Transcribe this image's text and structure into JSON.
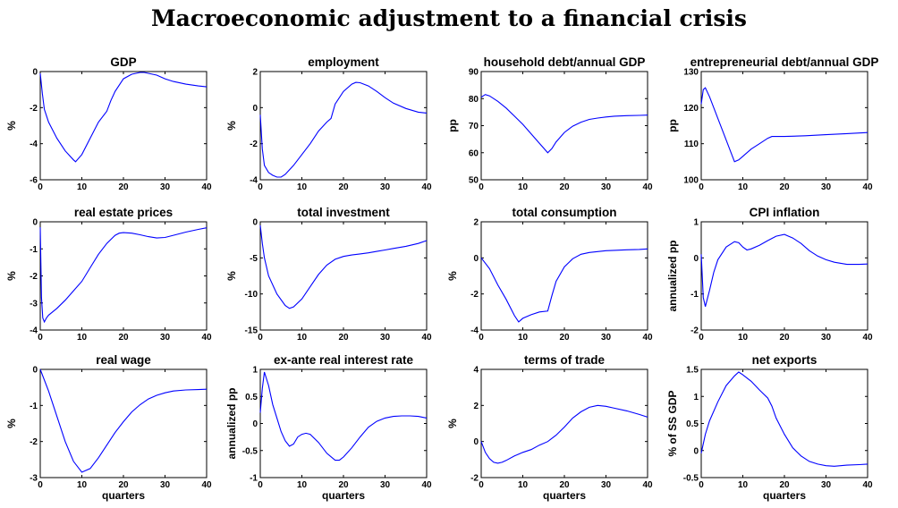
{
  "figure_title": "Macroeconomic adjustment to a financial crisis",
  "line_color": "#0000ff",
  "chart_data": [
    {
      "type": "line",
      "title": "GDP",
      "xlabel": "",
      "ylabel": "%",
      "xlim": [
        0,
        40
      ],
      "ylim": [
        -6,
        0
      ],
      "xticks": [
        0,
        10,
        20,
        30,
        40
      ],
      "yticks": [
        -6,
        -4,
        -2,
        0
      ],
      "x": [
        0,
        0.5,
        1,
        2,
        4,
        6,
        8,
        8.5,
        10,
        12,
        14,
        16,
        17,
        18,
        20,
        22,
        24,
        25,
        26,
        28,
        30,
        32,
        35,
        38,
        40
      ],
      "y": [
        -0.1,
        -1.2,
        -2.1,
        -2.8,
        -3.7,
        -4.4,
        -4.9,
        -5.0,
        -4.6,
        -3.7,
        -2.8,
        -2.2,
        -1.6,
        -1.1,
        -0.4,
        -0.15,
        -0.05,
        -0.05,
        -0.1,
        -0.2,
        -0.4,
        -0.55,
        -0.7,
        -0.8,
        -0.85
      ]
    },
    {
      "type": "line",
      "title": "employment",
      "xlabel": "",
      "ylabel": "%",
      "xlim": [
        0,
        40
      ],
      "ylim": [
        -4,
        2
      ],
      "xticks": [
        0,
        10,
        20,
        30,
        40
      ],
      "yticks": [
        -4,
        -2,
        0,
        2
      ],
      "x": [
        0,
        0.5,
        1,
        2,
        3,
        4,
        5,
        6,
        8,
        10,
        12,
        14,
        16,
        17,
        18,
        20,
        22,
        23,
        24,
        26,
        28,
        30,
        32,
        35,
        38,
        40
      ],
      "y": [
        -0.4,
        -2.3,
        -3.2,
        -3.6,
        -3.75,
        -3.85,
        -3.85,
        -3.7,
        -3.2,
        -2.6,
        -2.0,
        -1.3,
        -0.8,
        -0.6,
        0.2,
        0.9,
        1.3,
        1.4,
        1.38,
        1.2,
        0.9,
        0.55,
        0.25,
        -0.05,
        -0.25,
        -0.3
      ]
    },
    {
      "type": "line",
      "title": "household debt/annual GDP",
      "xlabel": "",
      "ylabel": "pp",
      "xlim": [
        0,
        40
      ],
      "ylim": [
        50,
        90
      ],
      "xticks": [
        0,
        10,
        20,
        30,
        40
      ],
      "yticks": [
        50,
        60,
        70,
        80,
        90
      ],
      "x": [
        0,
        1,
        2,
        4,
        6,
        8,
        10,
        12,
        14,
        16,
        17,
        18,
        20,
        22,
        24,
        26,
        28,
        30,
        32,
        35,
        38,
        40
      ],
      "y": [
        80.5,
        81.5,
        81,
        79,
        76.5,
        73.5,
        70.5,
        67,
        63.5,
        60,
        61.5,
        64,
        67.5,
        69.8,
        71.3,
        72.3,
        72.8,
        73.2,
        73.5,
        73.7,
        73.8,
        73.9
      ]
    },
    {
      "type": "line",
      "title": "entrepreneurial debt/annual GDP",
      "xlabel": "",
      "ylabel": "pp",
      "xlim": [
        0,
        40
      ],
      "ylim": [
        100,
        130
      ],
      "xticks": [
        0,
        10,
        20,
        30,
        40
      ],
      "yticks": [
        100,
        110,
        120,
        130
      ],
      "x": [
        0,
        0.5,
        1,
        2,
        4,
        6,
        8,
        9,
        10,
        12,
        14,
        16,
        17,
        18,
        20,
        25,
        30,
        35,
        40
      ],
      "y": [
        121,
        125,
        125.5,
        123,
        117,
        111,
        105,
        105.5,
        106.5,
        108.5,
        110,
        111.5,
        112,
        112,
        112,
        112.2,
        112.5,
        112.8,
        113.1
      ]
    },
    {
      "type": "line",
      "title": "real estate prices",
      "xlabel": "",
      "ylabel": "%",
      "xlim": [
        0,
        40
      ],
      "ylim": [
        -4,
        0
      ],
      "xticks": [
        0,
        10,
        20,
        30,
        40
      ],
      "yticks": [
        -4,
        -3,
        -2,
        -1,
        0
      ],
      "x": [
        0,
        0.3,
        0.6,
        1,
        1.5,
        2,
        4,
        6,
        8,
        10,
        12,
        14,
        16,
        18,
        19,
        20,
        22,
        24,
        26,
        28,
        30,
        32,
        35,
        38,
        40
      ],
      "y": [
        -0.2,
        -2.8,
        -3.55,
        -3.7,
        -3.55,
        -3.45,
        -3.2,
        -2.9,
        -2.55,
        -2.2,
        -1.7,
        -1.2,
        -0.8,
        -0.5,
        -0.42,
        -0.4,
        -0.42,
        -0.48,
        -0.55,
        -0.6,
        -0.58,
        -0.5,
        -0.38,
        -0.28,
        -0.22
      ]
    },
    {
      "type": "line",
      "title": "total investment",
      "xlabel": "",
      "ylabel": "%",
      "xlim": [
        0,
        40
      ],
      "ylim": [
        -15,
        0
      ],
      "xticks": [
        0,
        10,
        20,
        30,
        40
      ],
      "yticks": [
        -15,
        -10,
        -5,
        0
      ],
      "x": [
        0,
        0.5,
        1,
        2,
        4,
        6,
        7,
        8,
        10,
        12,
        14,
        16,
        18,
        20,
        22,
        24,
        26,
        28,
        30,
        32,
        35,
        38,
        40
      ],
      "y": [
        -0.5,
        -3,
        -5,
        -7.5,
        -10,
        -11.6,
        -12,
        -11.8,
        -10.7,
        -9,
        -7.3,
        -6,
        -5.2,
        -4.8,
        -4.6,
        -4.45,
        -4.3,
        -4.1,
        -3.9,
        -3.7,
        -3.4,
        -3.0,
        -2.6
      ]
    },
    {
      "type": "line",
      "title": "total consumption",
      "xlabel": "",
      "ylabel": "%",
      "xlim": [
        0,
        40
      ],
      "ylim": [
        -4,
        2
      ],
      "xticks": [
        0,
        10,
        20,
        30,
        40
      ],
      "yticks": [
        -4,
        -2,
        0,
        2
      ],
      "x": [
        0,
        2,
        4,
        6,
        8,
        9,
        10,
        12,
        14,
        16,
        17,
        18,
        20,
        22,
        24,
        26,
        28,
        30,
        32,
        35,
        38,
        40
      ],
      "y": [
        0,
        -0.6,
        -1.5,
        -2.3,
        -3.2,
        -3.55,
        -3.35,
        -3.15,
        -3.0,
        -2.95,
        -2.1,
        -1.3,
        -0.5,
        -0.05,
        0.2,
        0.3,
        0.35,
        0.4,
        0.42,
        0.45,
        0.47,
        0.5
      ]
    },
    {
      "type": "line",
      "title": "CPI inflation",
      "xlabel": "",
      "ylabel": "annualized pp",
      "xlim": [
        0,
        40
      ],
      "ylim": [
        -2,
        1
      ],
      "xticks": [
        0,
        10,
        20,
        30,
        40
      ],
      "yticks": [
        -2,
        -1,
        0,
        1
      ],
      "x": [
        0,
        0.5,
        1,
        2,
        3,
        4,
        6,
        8,
        9,
        10,
        11,
        12,
        14,
        16,
        18,
        20,
        21,
        22,
        24,
        26,
        28,
        30,
        32,
        35,
        38,
        40
      ],
      "y": [
        0.1,
        -1.1,
        -1.35,
        -0.9,
        -0.4,
        -0.05,
        0.3,
        0.45,
        0.42,
        0.3,
        0.22,
        0.25,
        0.35,
        0.48,
        0.6,
        0.65,
        0.6,
        0.55,
        0.4,
        0.2,
        0.05,
        -0.05,
        -0.12,
        -0.18,
        -0.18,
        -0.17
      ]
    },
    {
      "type": "line",
      "title": "real wage",
      "xlabel": "quarters",
      "ylabel": "%",
      "xlim": [
        0,
        40
      ],
      "ylim": [
        -3,
        0
      ],
      "xticks": [
        0,
        10,
        20,
        30,
        40
      ],
      "yticks": [
        -3,
        -2,
        -1,
        0
      ],
      "x": [
        0,
        2,
        4,
        6,
        8,
        10,
        12,
        14,
        16,
        18,
        20,
        22,
        24,
        26,
        28,
        30,
        32,
        35,
        38,
        40
      ],
      "y": [
        0,
        -0.6,
        -1.3,
        -2.0,
        -2.55,
        -2.85,
        -2.75,
        -2.45,
        -2.1,
        -1.75,
        -1.45,
        -1.18,
        -0.98,
        -0.82,
        -0.72,
        -0.65,
        -0.6,
        -0.57,
        -0.56,
        -0.55
      ]
    },
    {
      "type": "line",
      "title": "ex-ante real interest rate",
      "xlabel": "quarters",
      "ylabel": "annualized pp",
      "xlim": [
        0,
        40
      ],
      "ylim": [
        -1,
        1
      ],
      "xticks": [
        0,
        10,
        20,
        30,
        40
      ],
      "yticks": [
        -1,
        -0.5,
        0,
        0.5,
        1
      ],
      "x": [
        0,
        0.5,
        1,
        2,
        3,
        4,
        5,
        6,
        7,
        8,
        9,
        10,
        11,
        12,
        14,
        16,
        18,
        19,
        20,
        22,
        24,
        26,
        28,
        30,
        32,
        34,
        36,
        38,
        40
      ],
      "y": [
        0.2,
        0.65,
        0.95,
        0.7,
        0.35,
        0.1,
        -0.15,
        -0.32,
        -0.42,
        -0.38,
        -0.25,
        -0.2,
        -0.18,
        -0.2,
        -0.35,
        -0.55,
        -0.68,
        -0.68,
        -0.62,
        -0.45,
        -0.25,
        -0.07,
        0.04,
        0.1,
        0.13,
        0.14,
        0.14,
        0.13,
        0.1
      ]
    },
    {
      "type": "line",
      "title": "terms of trade",
      "xlabel": "quarters",
      "ylabel": "%",
      "xlim": [
        0,
        40
      ],
      "ylim": [
        -2,
        4
      ],
      "xticks": [
        0,
        10,
        20,
        30,
        40
      ],
      "yticks": [
        -2,
        0,
        2,
        4
      ],
      "x": [
        0,
        1,
        2,
        3,
        4,
        5,
        6,
        8,
        10,
        12,
        14,
        16,
        18,
        20,
        22,
        24,
        26,
        28,
        30,
        32,
        35,
        38,
        40
      ],
      "y": [
        0,
        -0.6,
        -0.95,
        -1.15,
        -1.2,
        -1.15,
        -1.05,
        -0.8,
        -0.6,
        -0.45,
        -0.2,
        0.0,
        0.35,
        0.8,
        1.3,
        1.65,
        1.9,
        2.0,
        1.95,
        1.85,
        1.7,
        1.5,
        1.35
      ]
    },
    {
      "type": "line",
      "title": "net exports",
      "xlabel": "quarters",
      "ylabel": "% of SS GDP",
      "xlim": [
        0,
        40
      ],
      "ylim": [
        -0.5,
        1.5
      ],
      "xticks": [
        0,
        10,
        20,
        30,
        40
      ],
      "yticks": [
        -0.5,
        0,
        0.5,
        1,
        1.5
      ],
      "x": [
        0,
        1,
        2,
        4,
        6,
        8,
        9,
        10,
        12,
        14,
        16,
        17,
        18,
        20,
        22,
        24,
        26,
        28,
        30,
        32,
        35,
        38,
        40
      ],
      "y": [
        -0.05,
        0.3,
        0.55,
        0.9,
        1.2,
        1.38,
        1.45,
        1.4,
        1.28,
        1.12,
        0.97,
        0.82,
        0.6,
        0.3,
        0.05,
        -0.1,
        -0.2,
        -0.25,
        -0.28,
        -0.29,
        -0.27,
        -0.26,
        -0.25
      ]
    }
  ]
}
